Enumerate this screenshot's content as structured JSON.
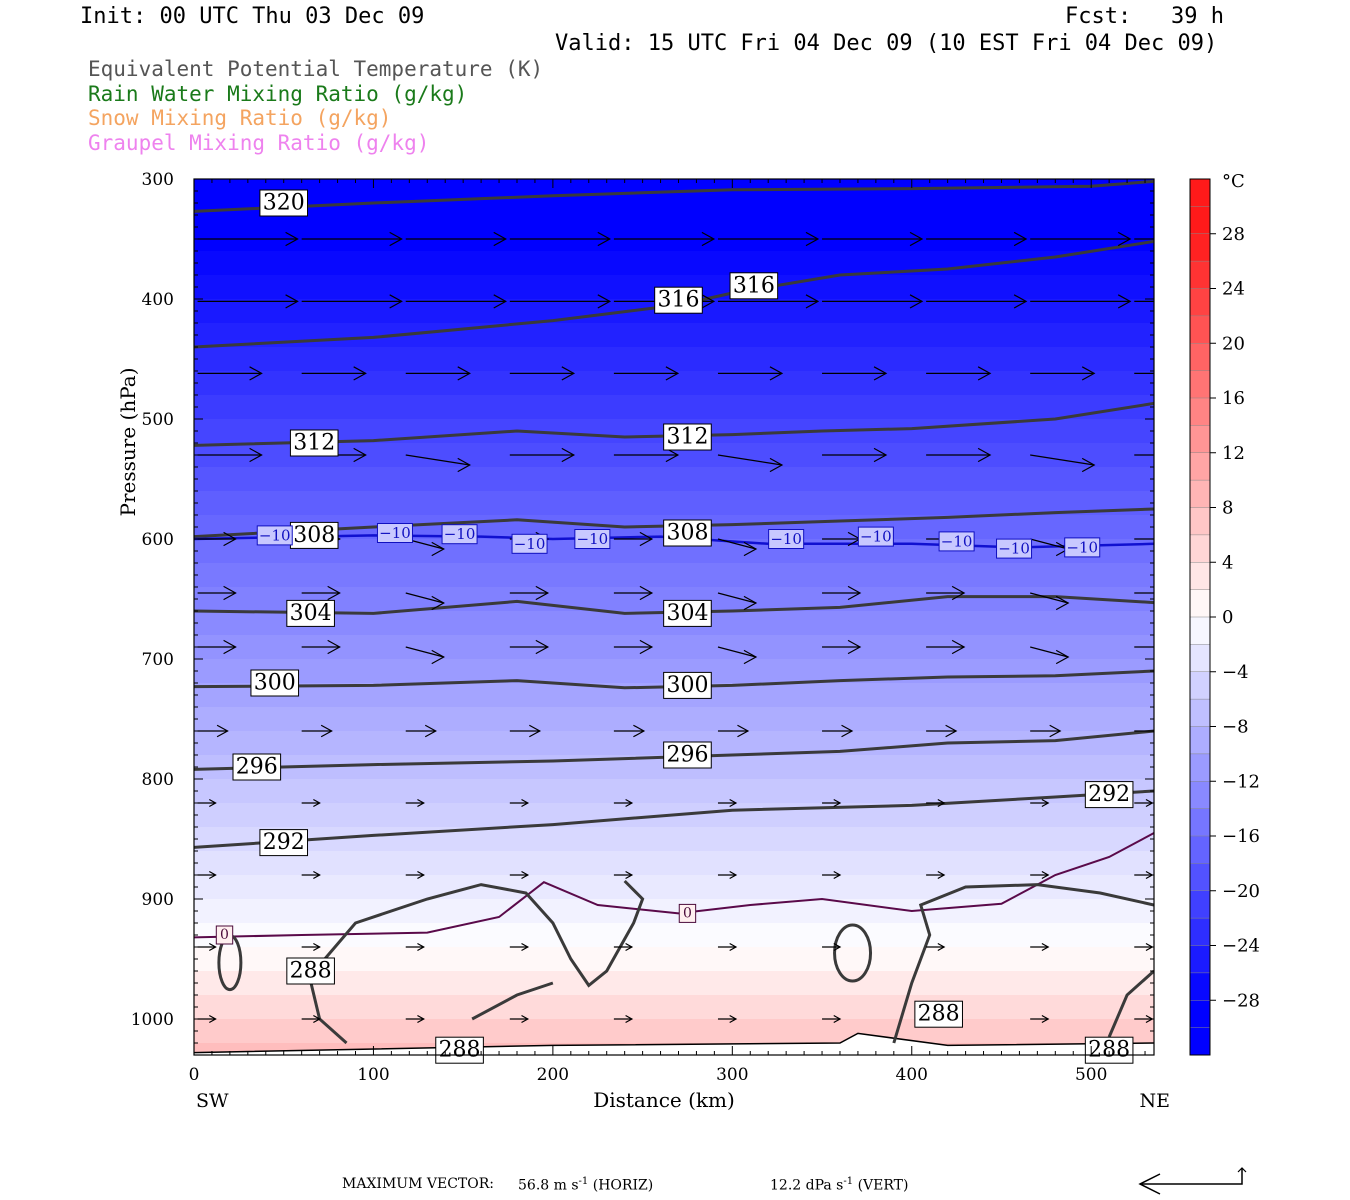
{
  "header": {
    "init": "Init: 00 UTC Thu 03 Dec 09",
    "fcst": "Fcst:   39 h",
    "valid": "Valid: 15 UTC Fri 04 Dec 09 (10 EST Fri 04 Dec 09)"
  },
  "legend": [
    {
      "text": "Equivalent Potential Temperature (K)",
      "color": "#555555"
    },
    {
      "text": "Rain Water Mixing Ratio (g/kg)",
      "color": "#1a7a1a"
    },
    {
      "text": "Snow Mixing Ratio (g/kg)",
      "color": "#f4a460"
    },
    {
      "text": "Graupel Mixing Ratio (g/kg)",
      "color": "#ee82ee"
    }
  ],
  "footer": {
    "max_vector_label": "MAXIMUM VECTOR:",
    "horiz_value": "56.8 m s",
    "horiz_exp": "-1",
    "horiz_unit": "(HORIZ)",
    "vert_value": "12.2 dPa s",
    "vert_exp": "-1",
    "vert_unit": "(VERT)"
  },
  "chart_data": {
    "type": "contour",
    "xlabel": "Distance (km)",
    "ylabel": "Pressure (hPa)",
    "xlim": [
      0,
      535
    ],
    "ylim": [
      1030,
      300
    ],
    "x_ticks": [
      0,
      100,
      200,
      300,
      400,
      500
    ],
    "y_ticks": [
      300,
      400,
      500,
      600,
      700,
      800,
      900,
      1000
    ],
    "x_end_labels": {
      "left": "SW",
      "right": "NE"
    },
    "colorbar": {
      "unit": "°C",
      "tick_labels": [
        "28",
        "24",
        "20",
        "16",
        "12",
        "8",
        "4",
        "0",
        "−4",
        "−8",
        "−12",
        "−16",
        "−20",
        "−24",
        "−28"
      ],
      "levels": [
        28,
        24,
        20,
        16,
        12,
        8,
        4,
        0,
        -4,
        -8,
        -12,
        -16,
        -20,
        -24,
        -28
      ],
      "warm_color": "#ff1a1a",
      "neutral_color": "#ffffff",
      "cold_color": "#0000ff"
    },
    "theta_e_contours": [
      {
        "label": "320",
        "points": [
          [
            0,
            327
          ],
          [
            100,
            320
          ],
          [
            200,
            314
          ],
          [
            300,
            309
          ],
          [
            400,
            308
          ],
          [
            500,
            306
          ],
          [
            535,
            302
          ]
        ],
        "label_pos": [
          50,
          320
        ]
      },
      {
        "label": "316",
        "points": [
          [
            0,
            440
          ],
          [
            100,
            432
          ],
          [
            200,
            418
          ],
          [
            270,
            405
          ],
          [
            300,
            395
          ],
          [
            360,
            380
          ],
          [
            420,
            375
          ],
          [
            480,
            365
          ],
          [
            535,
            352
          ]
        ],
        "label_pos": [
          270,
          401
        ],
        "label2": "316",
        "label2_pos": [
          312,
          389
        ]
      },
      {
        "label": "312",
        "points": [
          [
            0,
            522
          ],
          [
            100,
            518
          ],
          [
            180,
            510
          ],
          [
            240,
            515
          ],
          [
            300,
            513
          ],
          [
            350,
            510
          ],
          [
            400,
            508
          ],
          [
            480,
            500
          ],
          [
            535,
            487
          ]
        ],
        "label_pos": [
          67,
          520
        ],
        "label2": "312",
        "label2_pos": [
          275,
          515
        ]
      },
      {
        "label": "308",
        "points": [
          [
            0,
            598
          ],
          [
            100,
            590
          ],
          [
            180,
            584
          ],
          [
            240,
            590
          ],
          [
            300,
            588
          ],
          [
            360,
            585
          ],
          [
            420,
            582
          ],
          [
            480,
            578
          ],
          [
            535,
            575
          ]
        ],
        "label_pos": [
          67,
          597
        ],
        "label2": "308",
        "label2_pos": [
          275,
          595
        ]
      },
      {
        "label": "304",
        "points": [
          [
            0,
            660
          ],
          [
            100,
            662
          ],
          [
            180,
            652
          ],
          [
            240,
            662
          ],
          [
            300,
            660
          ],
          [
            360,
            657
          ],
          [
            420,
            648
          ],
          [
            480,
            648
          ],
          [
            535,
            653
          ]
        ],
        "label_pos": [
          65,
          662
        ],
        "label2": "304",
        "label2_pos": [
          275,
          662
        ]
      },
      {
        "label": "300",
        "points": [
          [
            0,
            723
          ],
          [
            100,
            722
          ],
          [
            180,
            718
          ],
          [
            240,
            724
          ],
          [
            300,
            722
          ],
          [
            360,
            718
          ],
          [
            420,
            715
          ],
          [
            480,
            714
          ],
          [
            535,
            710
          ]
        ],
        "label_pos": [
          45,
          720
        ],
        "label2": "300",
        "label2_pos": [
          275,
          722
        ]
      },
      {
        "label": "296",
        "points": [
          [
            0,
            792
          ],
          [
            100,
            788
          ],
          [
            200,
            785
          ],
          [
            300,
            780
          ],
          [
            360,
            777
          ],
          [
            420,
            770
          ],
          [
            480,
            768
          ],
          [
            535,
            760
          ]
        ],
        "label_pos": [
          35,
          790
        ],
        "label2": "296",
        "label2_pos": [
          275,
          780
        ]
      },
      {
        "label": "292",
        "points": [
          [
            0,
            857
          ],
          [
            100,
            847
          ],
          [
            200,
            838
          ],
          [
            300,
            826
          ],
          [
            400,
            822
          ],
          [
            480,
            815
          ],
          [
            535,
            810
          ]
        ],
        "label_pos": [
          50,
          853
        ],
        "label2": "292",
        "label2_pos": [
          510,
          813
        ]
      }
    ],
    "isotherm_minus10": {
      "label": "−10",
      "points": [
        [
          0,
          600
        ],
        [
          100,
          597
        ],
        [
          160,
          598
        ],
        [
          200,
          600
        ],
        [
          260,
          598
        ],
        [
          320,
          604
        ],
        [
          400,
          604
        ],
        [
          460,
          607
        ],
        [
          535,
          604
        ]
      ],
      "label_positions": [
        [
          45,
          597
        ],
        [
          112,
          595
        ],
        [
          148,
          596
        ],
        [
          187,
          604
        ],
        [
          222,
          600
        ],
        [
          425,
          602
        ],
        [
          457,
          608
        ],
        [
          495,
          607
        ],
        [
          380,
          598
        ],
        [
          330,
          600
        ]
      ]
    },
    "isotherm_zero": {
      "label": "0",
      "points": [
        [
          0,
          932
        ],
        [
          60,
          930
        ],
        [
          130,
          928
        ],
        [
          170,
          915
        ],
        [
          195,
          886
        ],
        [
          225,
          905
        ],
        [
          270,
          912
        ],
        [
          310,
          905
        ],
        [
          350,
          900
        ],
        [
          400,
          910
        ],
        [
          450,
          904
        ],
        [
          480,
          880
        ],
        [
          510,
          865
        ],
        [
          535,
          845
        ]
      ],
      "label_positions": [
        [
          17,
          930
        ],
        [
          275,
          912
        ]
      ]
    },
    "contour_288_labels": [
      [
        65,
        960
      ],
      [
        148,
        1026
      ],
      [
        415,
        996
      ],
      [
        510,
        1026
      ]
    ],
    "wind_arrow_rows_hpa": [
      350,
      402,
      462,
      530,
      600,
      645,
      690,
      760,
      820,
      880,
      940,
      1000
    ]
  }
}
